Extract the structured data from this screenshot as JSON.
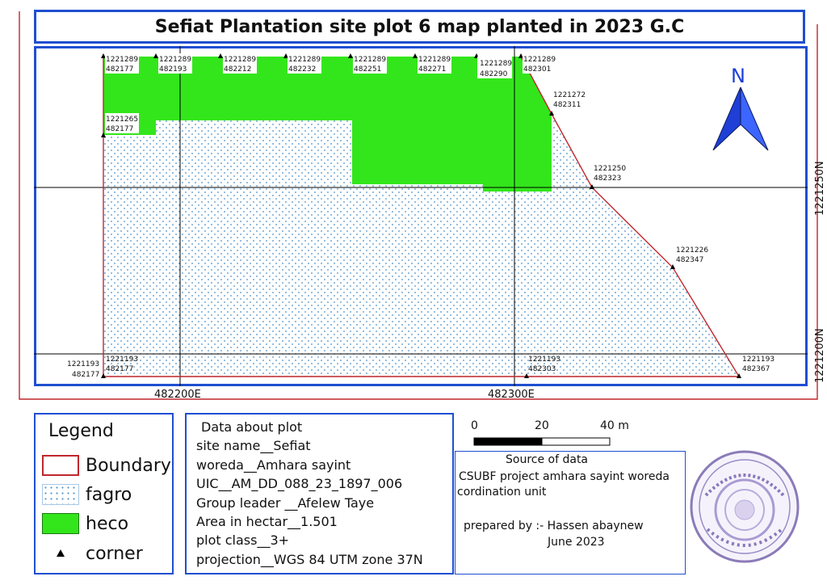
{
  "title": "Sefiat Plantation site plot 6 map planted in 2023 G.C",
  "north_label": "N",
  "grid": {
    "x_labels": [
      "482200E",
      "482300E"
    ],
    "y_labels": [
      "1221250N",
      "1221200N"
    ]
  },
  "points": [
    {
      "n": "1221289",
      "e": "482177"
    },
    {
      "n": "1221289",
      "e": "482193"
    },
    {
      "n": "1221289",
      "e": "482212"
    },
    {
      "n": "1221289",
      "e": "482232"
    },
    {
      "n": "1221289",
      "e": "482251"
    },
    {
      "n": "1221289",
      "e": "482271"
    },
    {
      "n": "1221289",
      "e": "482290"
    },
    {
      "n": "1221289",
      "e": "482301"
    },
    {
      "n": "1221272",
      "e": "482311"
    },
    {
      "n": "1221250",
      "e": "482323"
    },
    {
      "n": "1221226",
      "e": "482347"
    },
    {
      "n": "1221193",
      "e": "482367"
    },
    {
      "n": "1221193",
      "e": "482303"
    },
    {
      "n": "1221193",
      "e": "482177"
    },
    {
      "n": "1221265",
      "e": "482177"
    }
  ],
  "outside_point": {
    "n": "1221193",
    "e": "482177"
  },
  "legend": {
    "title": "Legend",
    "items": [
      {
        "label": "Boundary",
        "color": "#c0272d"
      },
      {
        "label": "fagro",
        "color": "#4a90c8"
      },
      {
        "label": "heco",
        "color": "#33e61b"
      },
      {
        "label": "corner",
        "color": "#000000"
      }
    ]
  },
  "plot_info": {
    "heading": "Data about plot",
    "lines": [
      "site name__Sefiat",
      "woreda__Amhara sayint",
      "UIC__AM_DD_088_23_1897_006",
      "Group leader __Afelew Taye",
      "Area in hectar__1.501",
      "plot class__3+",
      "projection__WGS 84 UTM zone 37N"
    ]
  },
  "scale": {
    "labels": [
      "0",
      "20",
      "40  m"
    ]
  },
  "source": {
    "heading": "Source of data",
    "line1": "CSUBF project amhara sayint woreda",
    "line2": "cordination unit",
    "prepared": "prepared by :- Hassen abaynew",
    "date": "June 2023"
  },
  "colors": {
    "frame": "#1f4fd0",
    "heco": "#33e61b",
    "boundary": "#c0272d",
    "fagro_dot": "#4a90c8",
    "north_arrow": "#1f3fd6"
  }
}
